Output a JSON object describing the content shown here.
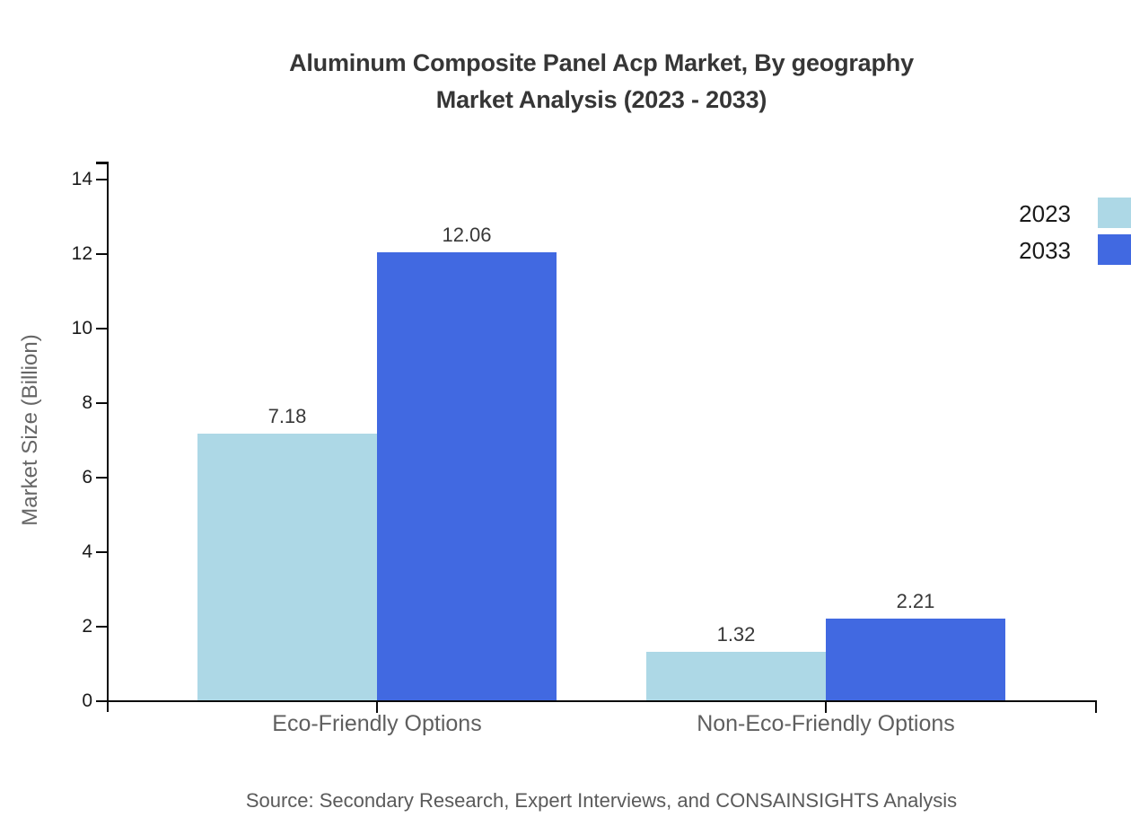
{
  "chart_data": {
    "type": "bar",
    "title": "Aluminum Composite Panel Acp Market, By geography Market Analysis (2023 - 2033)",
    "title_line1": "Aluminum Composite Panel Acp Market, By geography",
    "title_line2": "Market Analysis (2023 - 2033)",
    "ylabel": "Market Size (Billion)",
    "categories": [
      "Eco-Friendly Options",
      "Non-Eco-Friendly Options"
    ],
    "series": [
      {
        "name": "2023",
        "color": "#ADD8E6",
        "values": [
          7.18,
          1.32
        ],
        "value_labels": [
          "7.18",
          "1.32"
        ]
      },
      {
        "name": "2033",
        "color": "#4169E1",
        "values": [
          12.06,
          2.21
        ],
        "value_labels": [
          "12.06",
          "2.21"
        ]
      }
    ],
    "yticks": [
      0,
      2,
      4,
      6,
      8,
      10,
      12,
      14
    ],
    "ylim": [
      0,
      14.5
    ],
    "grid": false,
    "legend_position": "right-edge-clipped",
    "source": "Source: Secondary Research, Expert Interviews, and CONSAINSIGHTS Analysis"
  },
  "colors": {
    "series_2023": "#ADD8E6",
    "series_2033": "#4169E1",
    "axis": "#0a0a0a",
    "title_text": "#363636",
    "tick_text": "#1a1a1a",
    "category_text": "#5f5f5f",
    "value_text": "#383838",
    "axis_label_text": "#666666",
    "source_text": "#5a5a5a",
    "background": "#ffffff"
  }
}
